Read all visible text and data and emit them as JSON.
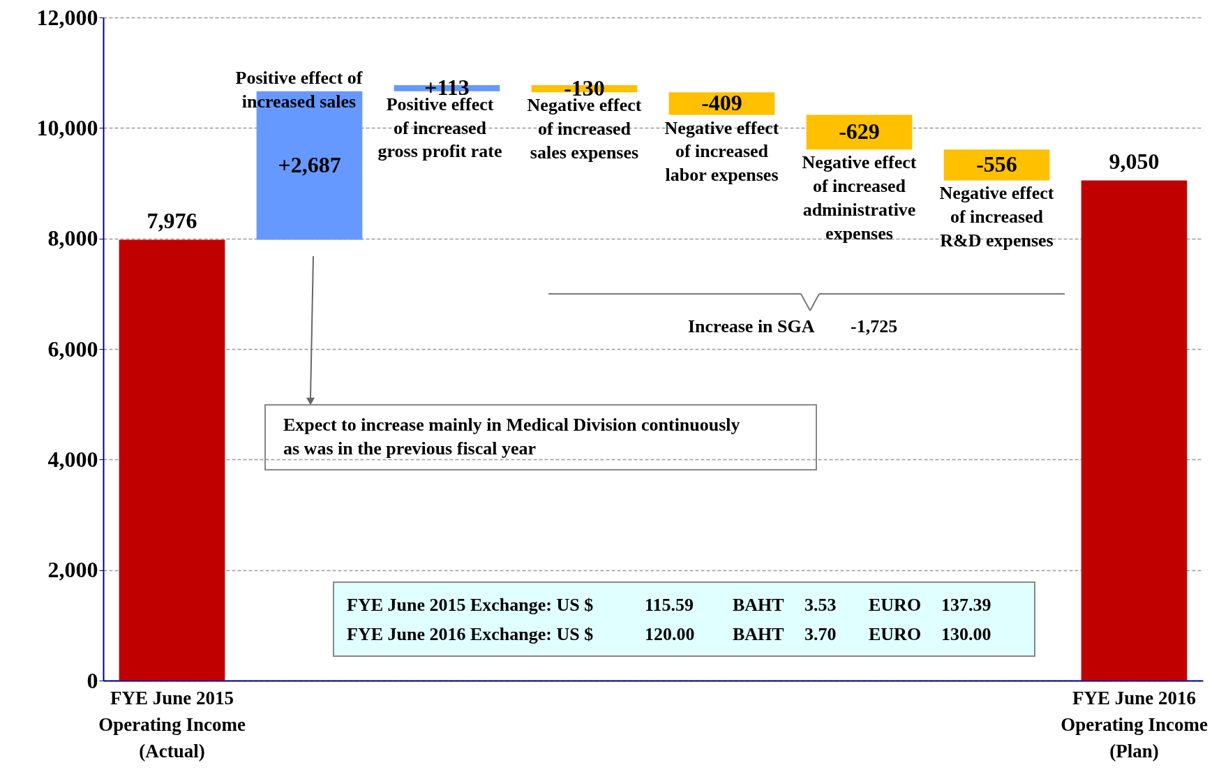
{
  "chart_data": {
    "type": "bar",
    "categories": [
      "FYE June 2015\nOperating Income\n(Actual)",
      null,
      null,
      null,
      null,
      null,
      null,
      "FYE June 2016\nOperating Income\n(Plan)"
    ],
    "values": [
      7976,
      2687,
      113,
      -130,
      -409,
      -629,
      -556,
      9050
    ],
    "base": [
      0,
      7976,
      10663,
      10776,
      10646,
      10237,
      9608,
      0
    ],
    "colors": [
      "#c00000",
      "#6699ff",
      "#6699ff",
      "#ffc000",
      "#ffc000",
      "#ffc000",
      "#ffc000",
      "#c00000"
    ],
    "value_labels": [
      "7,976",
      "+2,687",
      "+113",
      "-130",
      "-409",
      "-629",
      "-556",
      "9,050"
    ],
    "ylim": [
      0,
      12000
    ],
    "yticks": [
      0,
      {
        "value": 2000,
        "label": "2,000"
      },
      {
        "value": 4000,
        "label": "4,000"
      },
      {
        "value": 6000,
        "label": "6,000"
      },
      {
        "value": 8000,
        "label": "8,000"
      },
      {
        "value": 10000,
        "label": "10,000"
      },
      {
        "value": 12000,
        "label": "12,000"
      }
    ],
    "grid": "y",
    "annotations": [
      "Positive effect of\nincreased sales",
      "Positive effect\nof increased\ngross profit rate",
      "Negative effect\nof increased\nsales expenses",
      "Negative effect\nof increased\nlabor expenses",
      "Negative effect\nof increased\nadministrative\nexpenses",
      "Negative effect\nof increased\nR&D expenses",
      "Increase in SGA    -1,725",
      "Expect to increase mainly in Medical Division continuously\nas was in the previous fiscal year",
      "FYE June 2015 Exchange: US $    115.59       BAHT   3.53       EURO   137.39\nFYE June 2016 Exchange: US $    120.00       BAHT   3.70       EURO   130.00"
    ]
  }
}
